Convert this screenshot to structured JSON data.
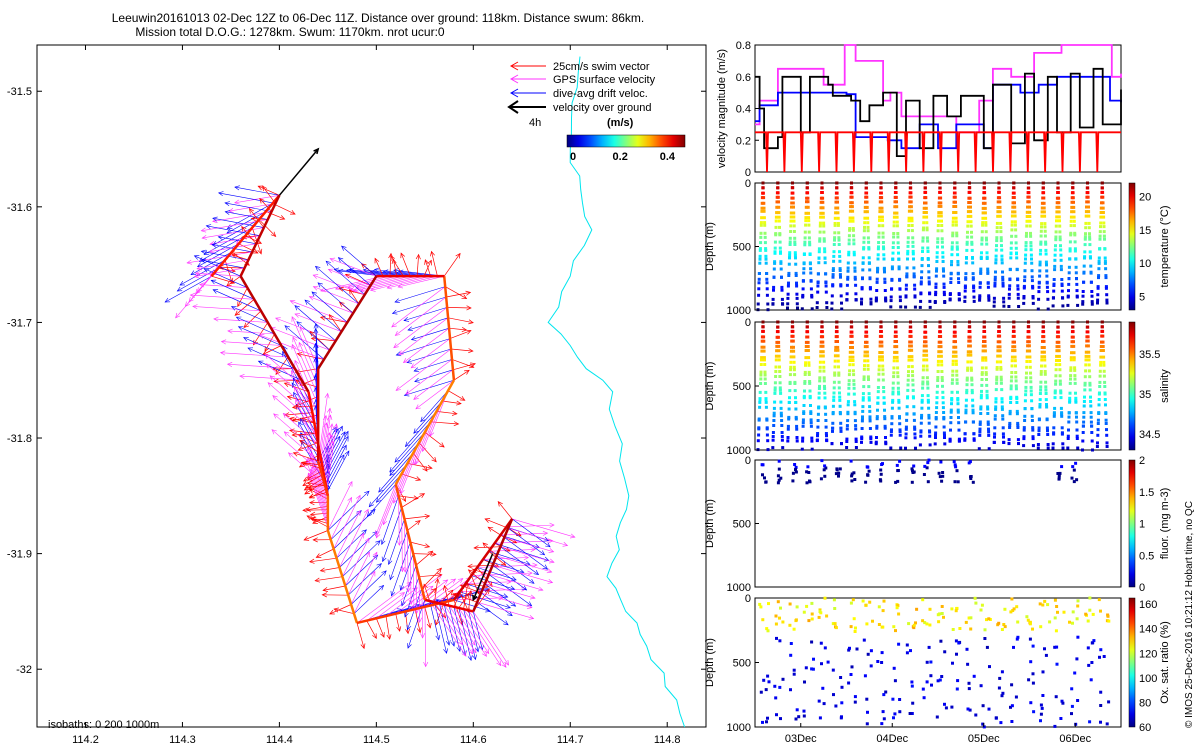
{
  "title_line1": "Leeuwin20161013 02-Dec 12Z to 06-Dec 11Z. Distance over ground: 118km. Distance swum: 86km.",
  "title_line2": "Mission total D.O.G.: 1278km. Swum: 1170km. nrot ucur:0",
  "isobaths_label": "isobaths: 0   200  1000m",
  "side_label": "© IMOS 25-Dec-2016 10:21:12 Hobart time, no QC",
  "colors": {
    "swim": "#ff0000",
    "gps": "#ff33ff",
    "drift": "#0000ff",
    "ground": "#000000",
    "isobath": "#00e5ee"
  },
  "map": {
    "xticks": [
      "114.2",
      "114.3",
      "114.4",
      "114.5",
      "114.6",
      "114.7",
      "114.8"
    ],
    "yticks": [
      "-31.5",
      "-31.6",
      "-31.7",
      "-31.8",
      "-31.9",
      "-32"
    ],
    "xrange": [
      114.15,
      114.84
    ],
    "yrange": [
      -32.05,
      -31.46
    ],
    "legend": {
      "swim": "25cm/s swim vector",
      "gps": "GPS surface velocity",
      "drift": "dive-avg drift veloc.",
      "ground": "velocity over ground",
      "scale_label": "4h",
      "cbar_title": "(m/s)",
      "cbar_ticks": [
        "0",
        "0.2",
        "0.4"
      ]
    },
    "track": [
      [
        114.33,
        -31.66
      ],
      [
        114.4,
        -31.59
      ],
      [
        114.36,
        -31.66
      ],
      [
        114.43,
        -31.76
      ],
      [
        114.45,
        -31.85
      ],
      [
        114.45,
        -31.88
      ],
      [
        114.48,
        -31.96
      ],
      [
        114.58,
        -31.94
      ],
      [
        114.64,
        -31.87
      ],
      [
        114.6,
        -31.95
      ],
      [
        114.55,
        -31.94
      ],
      [
        114.52,
        -31.84
      ],
      [
        114.58,
        -31.75
      ],
      [
        114.57,
        -31.66
      ],
      [
        114.5,
        -31.66
      ],
      [
        114.44,
        -31.74
      ],
      [
        114.44,
        -31.82
      ],
      [
        114.45,
        -31.85
      ]
    ]
  },
  "chart_data": [
    {
      "type": "line",
      "ylabel": "velocity magnitude (m/s)",
      "ylim": [
        0,
        0.8
      ],
      "yticks": [
        "0",
        "0.2",
        "0.4",
        "0.6",
        "0.8"
      ],
      "x_days": [
        2.5,
        6.5
      ],
      "series": [
        {
          "name": "GPS surface velocity",
          "color": "#ff33ff",
          "x": [
            2.5,
            2.55,
            2.75,
            2.98,
            3.25,
            3.48,
            3.6,
            3.9,
            3.98,
            4.1,
            4.3,
            4.5,
            4.7,
            4.95,
            5.1,
            5.3,
            5.55,
            5.85,
            6.4,
            6.5
          ],
          "y": [
            0.3,
            0.45,
            0.65,
            0.65,
            0.55,
            0.8,
            0.7,
            0.45,
            0.5,
            0.35,
            0.35,
            0.35,
            0.25,
            0.45,
            0.65,
            0.6,
            0.75,
            0.8,
            0.6,
            0.62
          ]
        },
        {
          "name": "dive-avg drift veloc.",
          "color": "#0000ff",
          "x": [
            2.5,
            2.55,
            2.75,
            2.98,
            3.2,
            3.5,
            3.6,
            3.95,
            4.1,
            4.3,
            4.5,
            4.7,
            5.0,
            5.1,
            5.4,
            5.6,
            5.8,
            6.0,
            6.38,
            6.5
          ],
          "y": [
            0.32,
            0.42,
            0.5,
            0.5,
            0.5,
            0.49,
            0.22,
            0.2,
            0.15,
            0.3,
            0.15,
            0.3,
            0.15,
            0.55,
            0.5,
            0.55,
            0.6,
            0.6,
            0.45,
            0.44
          ]
        },
        {
          "name": "velocity over ground",
          "color": "#000000",
          "x": [
            2.5,
            2.55,
            2.6,
            2.75,
            2.8,
            3.0,
            3.1,
            3.3,
            3.35,
            3.55,
            3.65,
            3.75,
            3.9,
            4.05,
            4.15,
            4.3,
            4.45,
            4.6,
            4.75,
            5.0,
            5.1,
            5.3,
            5.45,
            5.55,
            5.7,
            5.8,
            5.95,
            6.05,
            6.2,
            6.3,
            6.5
          ],
          "y": [
            0.6,
            0.4,
            0.15,
            0.22,
            0.6,
            0.25,
            0.6,
            0.55,
            0.48,
            0.45,
            0.32,
            0.42,
            0.5,
            0.1,
            0.45,
            0.15,
            0.48,
            0.35,
            0.48,
            0.15,
            0.55,
            0.18,
            0.62,
            0.2,
            0.6,
            0.25,
            0.62,
            0.28,
            0.65,
            0.3,
            0.52
          ]
        },
        {
          "name": "25cm/s swim vector",
          "color": "#ff0000",
          "x": [
            2.5,
            6.5
          ],
          "y": [
            0.25,
            0.25
          ]
        }
      ]
    },
    {
      "type": "scatter",
      "ylabel": "Depth (m)",
      "cbar_label": "temperature (°C)",
      "cbar_ticks": [
        "5",
        "10",
        "15",
        "20"
      ],
      "clim": [
        3,
        22
      ],
      "ylim": [
        0,
        1000
      ],
      "yticks": [
        "0",
        "500",
        "1000"
      ],
      "dive_period_h": 4.1,
      "max_depth": 1000,
      "surface_value": 22,
      "deep_value": 3
    },
    {
      "type": "scatter",
      "ylabel": "Depth (m)",
      "cbar_label": "salinity",
      "cbar_ticks": [
        "34.5",
        "35",
        "35.5"
      ],
      "clim": [
        34.3,
        35.9
      ],
      "ylim": [
        0,
        1000
      ],
      "yticks": [
        "0",
        "500",
        "1000"
      ],
      "dive_period_h": 4.1,
      "max_depth": 1000,
      "surface_value": 35.9,
      "deep_value": 34.4
    },
    {
      "type": "scatter",
      "ylabel": "Depth (m)",
      "cbar_label": "fluor. (mg m-3)",
      "cbar_ticks": [
        "0",
        "0.5",
        "1",
        "1.5",
        "2"
      ],
      "clim": [
        0,
        2
      ],
      "ylim": [
        0,
        1000
      ],
      "yticks": [
        "0",
        "500",
        "1000"
      ],
      "max_depth": 200
    },
    {
      "type": "scatter",
      "ylabel": "Depth (m)",
      "cbar_label": "Ox. sat. ratio (%)",
      "cbar_ticks": [
        "60",
        "80",
        "100",
        "120",
        "140",
        "160"
      ],
      "clim": [
        60,
        165
      ],
      "ylim": [
        0,
        1000
      ],
      "yticks": [
        "0",
        "500",
        "1000"
      ],
      "xticks": [
        "03Dec",
        "04Dec",
        "05Dec",
        "06Dec"
      ]
    }
  ]
}
